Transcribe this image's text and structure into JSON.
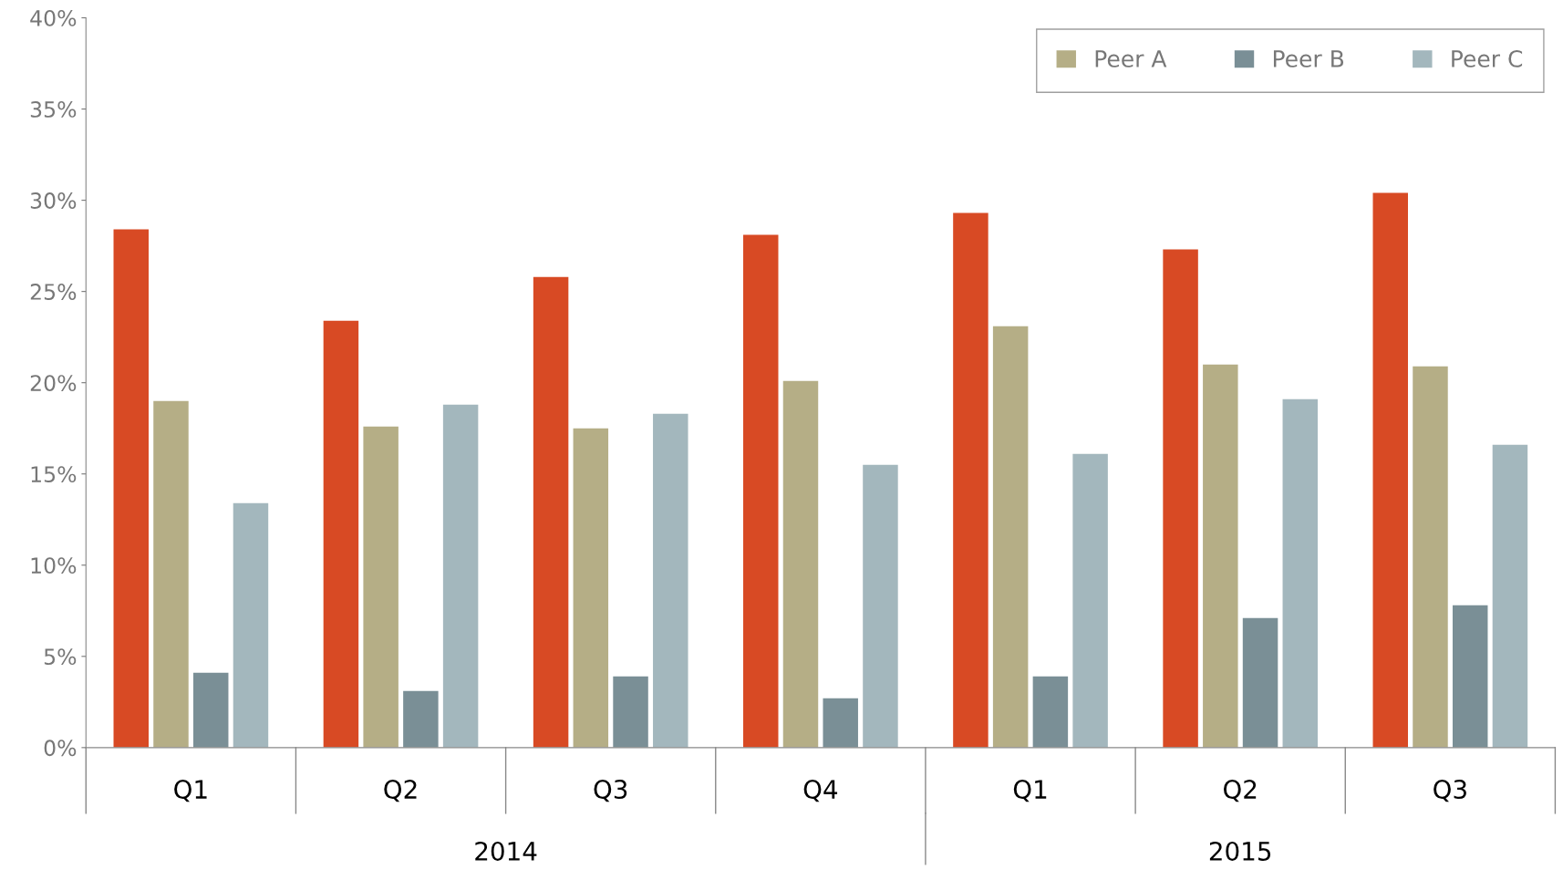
{
  "chart_data": {
    "type": "bar",
    "categories": [
      "Q1",
      "Q2",
      "Q3",
      "Q4",
      "Q1",
      "Q2",
      "Q3"
    ],
    "annotations": [
      "2014",
      "2015"
    ],
    "series": [
      {
        "color": "#d84a24",
        "values": [
          28.4,
          23.4,
          25.8,
          28.1,
          29.3,
          27.3,
          30.4
        ]
      },
      {
        "name": "Peer A",
        "color": "#b5ae86",
        "values": [
          19.0,
          17.6,
          17.5,
          20.1,
          23.1,
          21.0,
          20.9
        ]
      },
      {
        "name": "Peer B",
        "color": "#7a8f96",
        "values": [
          4.1,
          3.1,
          3.9,
          2.7,
          3.9,
          7.1,
          7.8
        ]
      },
      {
        "name": "Peer C",
        "color": "#a3b7bd",
        "values": [
          13.4,
          18.8,
          18.3,
          15.5,
          16.1,
          19.1,
          16.6
        ]
      }
    ],
    "ylim": [
      0,
      40
    ],
    "yticks": [
      {
        "value": 0,
        "label": "0%"
      },
      {
        "value": 5,
        "label": "5%"
      },
      {
        "value": 10,
        "label": "10%"
      },
      {
        "value": 15,
        "label": "15%"
      },
      {
        "value": 20,
        "label": "20%"
      },
      {
        "value": 25,
        "label": "25%"
      },
      {
        "value": 30,
        "label": "30%"
      },
      {
        "value": 35,
        "label": "35%"
      },
      {
        "value": 40,
        "label": "40%"
      }
    ],
    "grid": false,
    "legend": "top right"
  }
}
